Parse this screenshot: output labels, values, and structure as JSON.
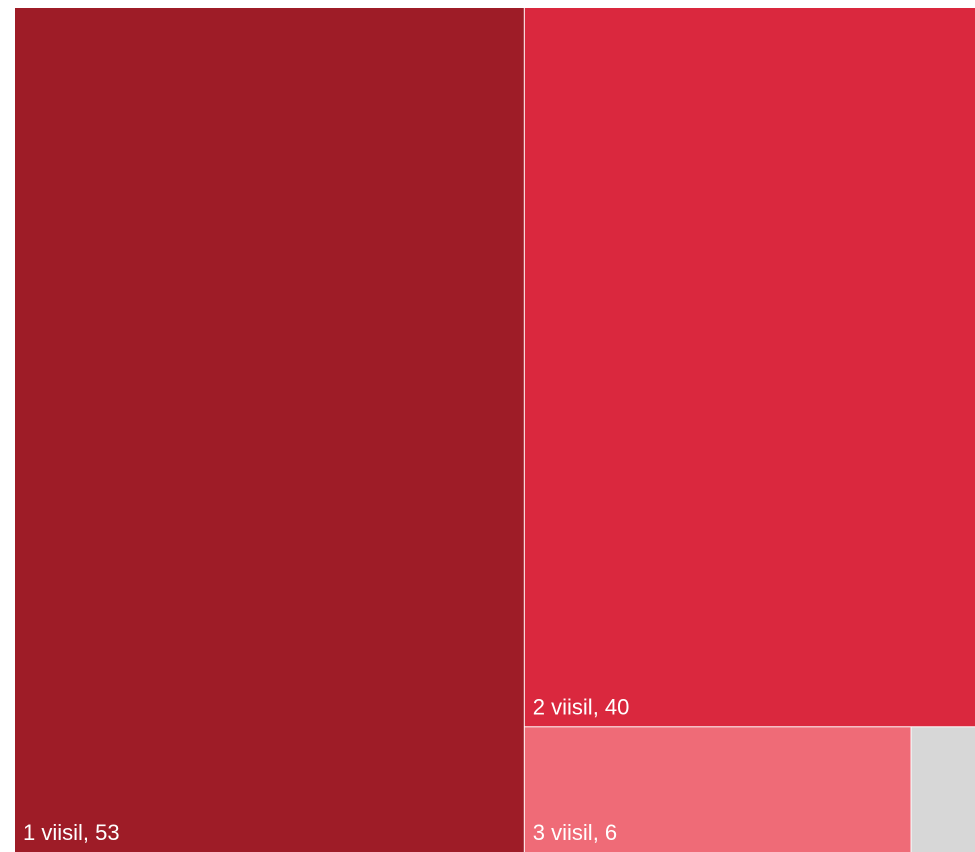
{
  "chart_data": {
    "type": "treemap",
    "items": [
      {
        "label": "1 viisil",
        "value": 53,
        "display": "1 viisil,  53",
        "color": "#9e1c27"
      },
      {
        "label": "2 viisil",
        "value": 40,
        "display": "2 viisil,  40",
        "color": "#da283e"
      },
      {
        "label": "3 viisil",
        "value": 6,
        "display": "3 viisil,  6",
        "color": "#ef6b77"
      },
      {
        "label": "",
        "value": 1,
        "display": "",
        "color": "#d7d7d7"
      }
    ]
  }
}
